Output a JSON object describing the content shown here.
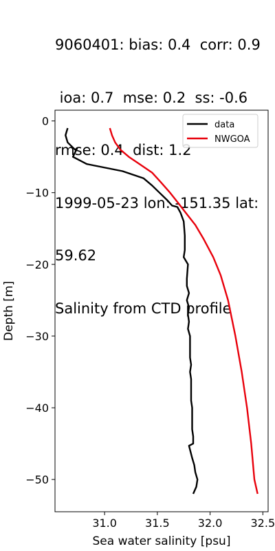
{
  "chart_data": {
    "type": "line",
    "title_lines": [
      "9060401: bias: 0.4  corr: 0.9",
      " ioa: 0.7  mse: 0.2  ss: -0.6",
      "rmse: 0.4  dist: 1.2",
      "1999-05-23 lon: -151.35 lat:",
      "59.62",
      "Salinity from CTD profile"
    ],
    "xlabel": "Sea water salinity [psu]",
    "ylabel": "Depth [m]",
    "xlim": [
      30.53,
      32.55
    ],
    "ylim": [
      -54.5,
      1.5
    ],
    "xticks": [
      31.0,
      31.5,
      32.0,
      32.5
    ],
    "xtick_labels": [
      "31.0",
      "31.5",
      "32.0",
      "32.5"
    ],
    "yticks": [
      0,
      -10,
      -20,
      -30,
      -40,
      -50
    ],
    "ytick_labels": [
      "0",
      "−10",
      "−20",
      "−30",
      "−40",
      "−50"
    ],
    "grid": false,
    "legend_position": "top-right",
    "series": [
      {
        "name": "data",
        "color": "#000000",
        "points": [
          [
            30.65,
            -1
          ],
          [
            30.63,
            -2
          ],
          [
            30.65,
            -3
          ],
          [
            30.72,
            -4
          ],
          [
            30.74,
            -3.8
          ],
          [
            30.7,
            -5
          ],
          [
            30.83,
            -6
          ],
          [
            31.17,
            -7
          ],
          [
            31.37,
            -8
          ],
          [
            31.45,
            -9
          ],
          [
            31.52,
            -10
          ],
          [
            31.59,
            -11
          ],
          [
            31.64,
            -11.8
          ],
          [
            31.69,
            -12
          ],
          [
            31.72,
            -12.8
          ],
          [
            31.75,
            -14
          ],
          [
            31.76,
            -16
          ],
          [
            31.76,
            -18
          ],
          [
            31.75,
            -19
          ],
          [
            31.79,
            -20
          ],
          [
            31.78,
            -22
          ],
          [
            31.78,
            -23
          ],
          [
            31.8,
            -24
          ],
          [
            31.78,
            -25
          ],
          [
            31.8,
            -26
          ],
          [
            31.79,
            -27
          ],
          [
            31.8,
            -28
          ],
          [
            31.79,
            -29
          ],
          [
            31.81,
            -30
          ],
          [
            31.81,
            -32
          ],
          [
            31.81,
            -33
          ],
          [
            31.82,
            -34
          ],
          [
            31.81,
            -35
          ],
          [
            31.82,
            -36
          ],
          [
            31.82,
            -38
          ],
          [
            31.82,
            -39
          ],
          [
            31.83,
            -40
          ],
          [
            31.83,
            -42
          ],
          [
            31.83,
            -43
          ],
          [
            31.84,
            -44
          ],
          [
            31.84,
            -45
          ],
          [
            31.8,
            -45.3
          ],
          [
            31.83,
            -47
          ],
          [
            31.85,
            -48
          ],
          [
            31.86,
            -49
          ],
          [
            31.88,
            -50
          ],
          [
            31.87,
            -51
          ],
          [
            31.84,
            -52
          ]
        ]
      },
      {
        "name": "NWGOA",
        "color": "#e8000b",
        "points": [
          [
            31.05,
            -1
          ],
          [
            31.07,
            -2
          ],
          [
            31.1,
            -3
          ],
          [
            31.15,
            -4
          ],
          [
            31.23,
            -5
          ],
          [
            31.33,
            -6
          ],
          [
            31.45,
            -7.2
          ],
          [
            31.53,
            -8.5
          ],
          [
            31.62,
            -10
          ],
          [
            31.7,
            -11.5
          ],
          [
            31.78,
            -13
          ],
          [
            31.86,
            -14.5
          ],
          [
            31.94,
            -16.5
          ],
          [
            32.03,
            -19
          ],
          [
            32.1,
            -21.5
          ],
          [
            32.17,
            -25
          ],
          [
            32.24,
            -30
          ],
          [
            32.3,
            -35
          ],
          [
            32.35,
            -40
          ],
          [
            32.39,
            -45
          ],
          [
            32.42,
            -50
          ],
          [
            32.45,
            -52
          ]
        ]
      }
    ]
  }
}
